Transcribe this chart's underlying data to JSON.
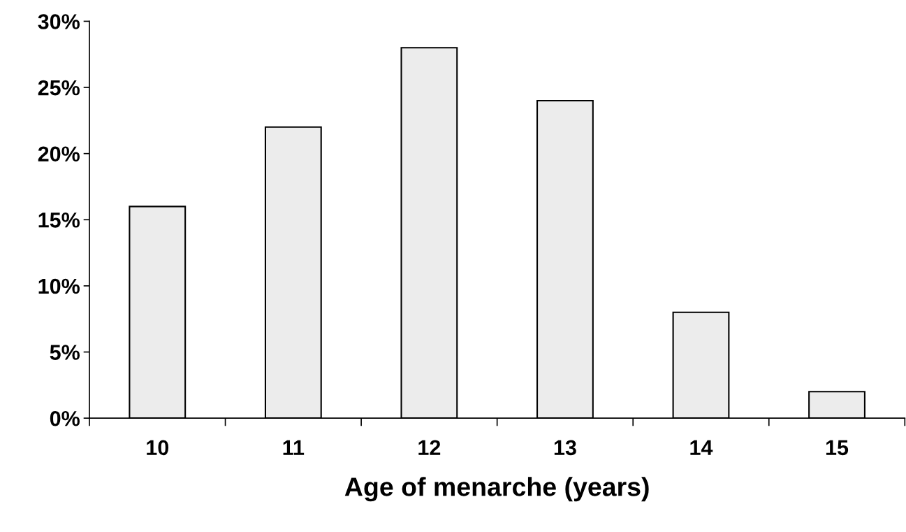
{
  "chart_data": {
    "type": "bar",
    "xlabel": "Age of menarche (years)",
    "categories": [
      "10",
      "11",
      "12",
      "13",
      "14",
      "15"
    ],
    "values": [
      16,
      22,
      28,
      24,
      8,
      2
    ],
    "color": "#ececec",
    "ylim": [
      0,
      30
    ],
    "yticks": [
      {
        "value": 0,
        "label": "0%"
      },
      {
        "value": 5,
        "label": "5%"
      },
      {
        "value": 10,
        "label": "10%"
      },
      {
        "value": 15,
        "label": "15%"
      },
      {
        "value": 20,
        "label": "20%"
      },
      {
        "value": 25,
        "label": "25%"
      },
      {
        "value": 30,
        "label": "30%"
      }
    ],
    "grid": false,
    "legend": false
  }
}
